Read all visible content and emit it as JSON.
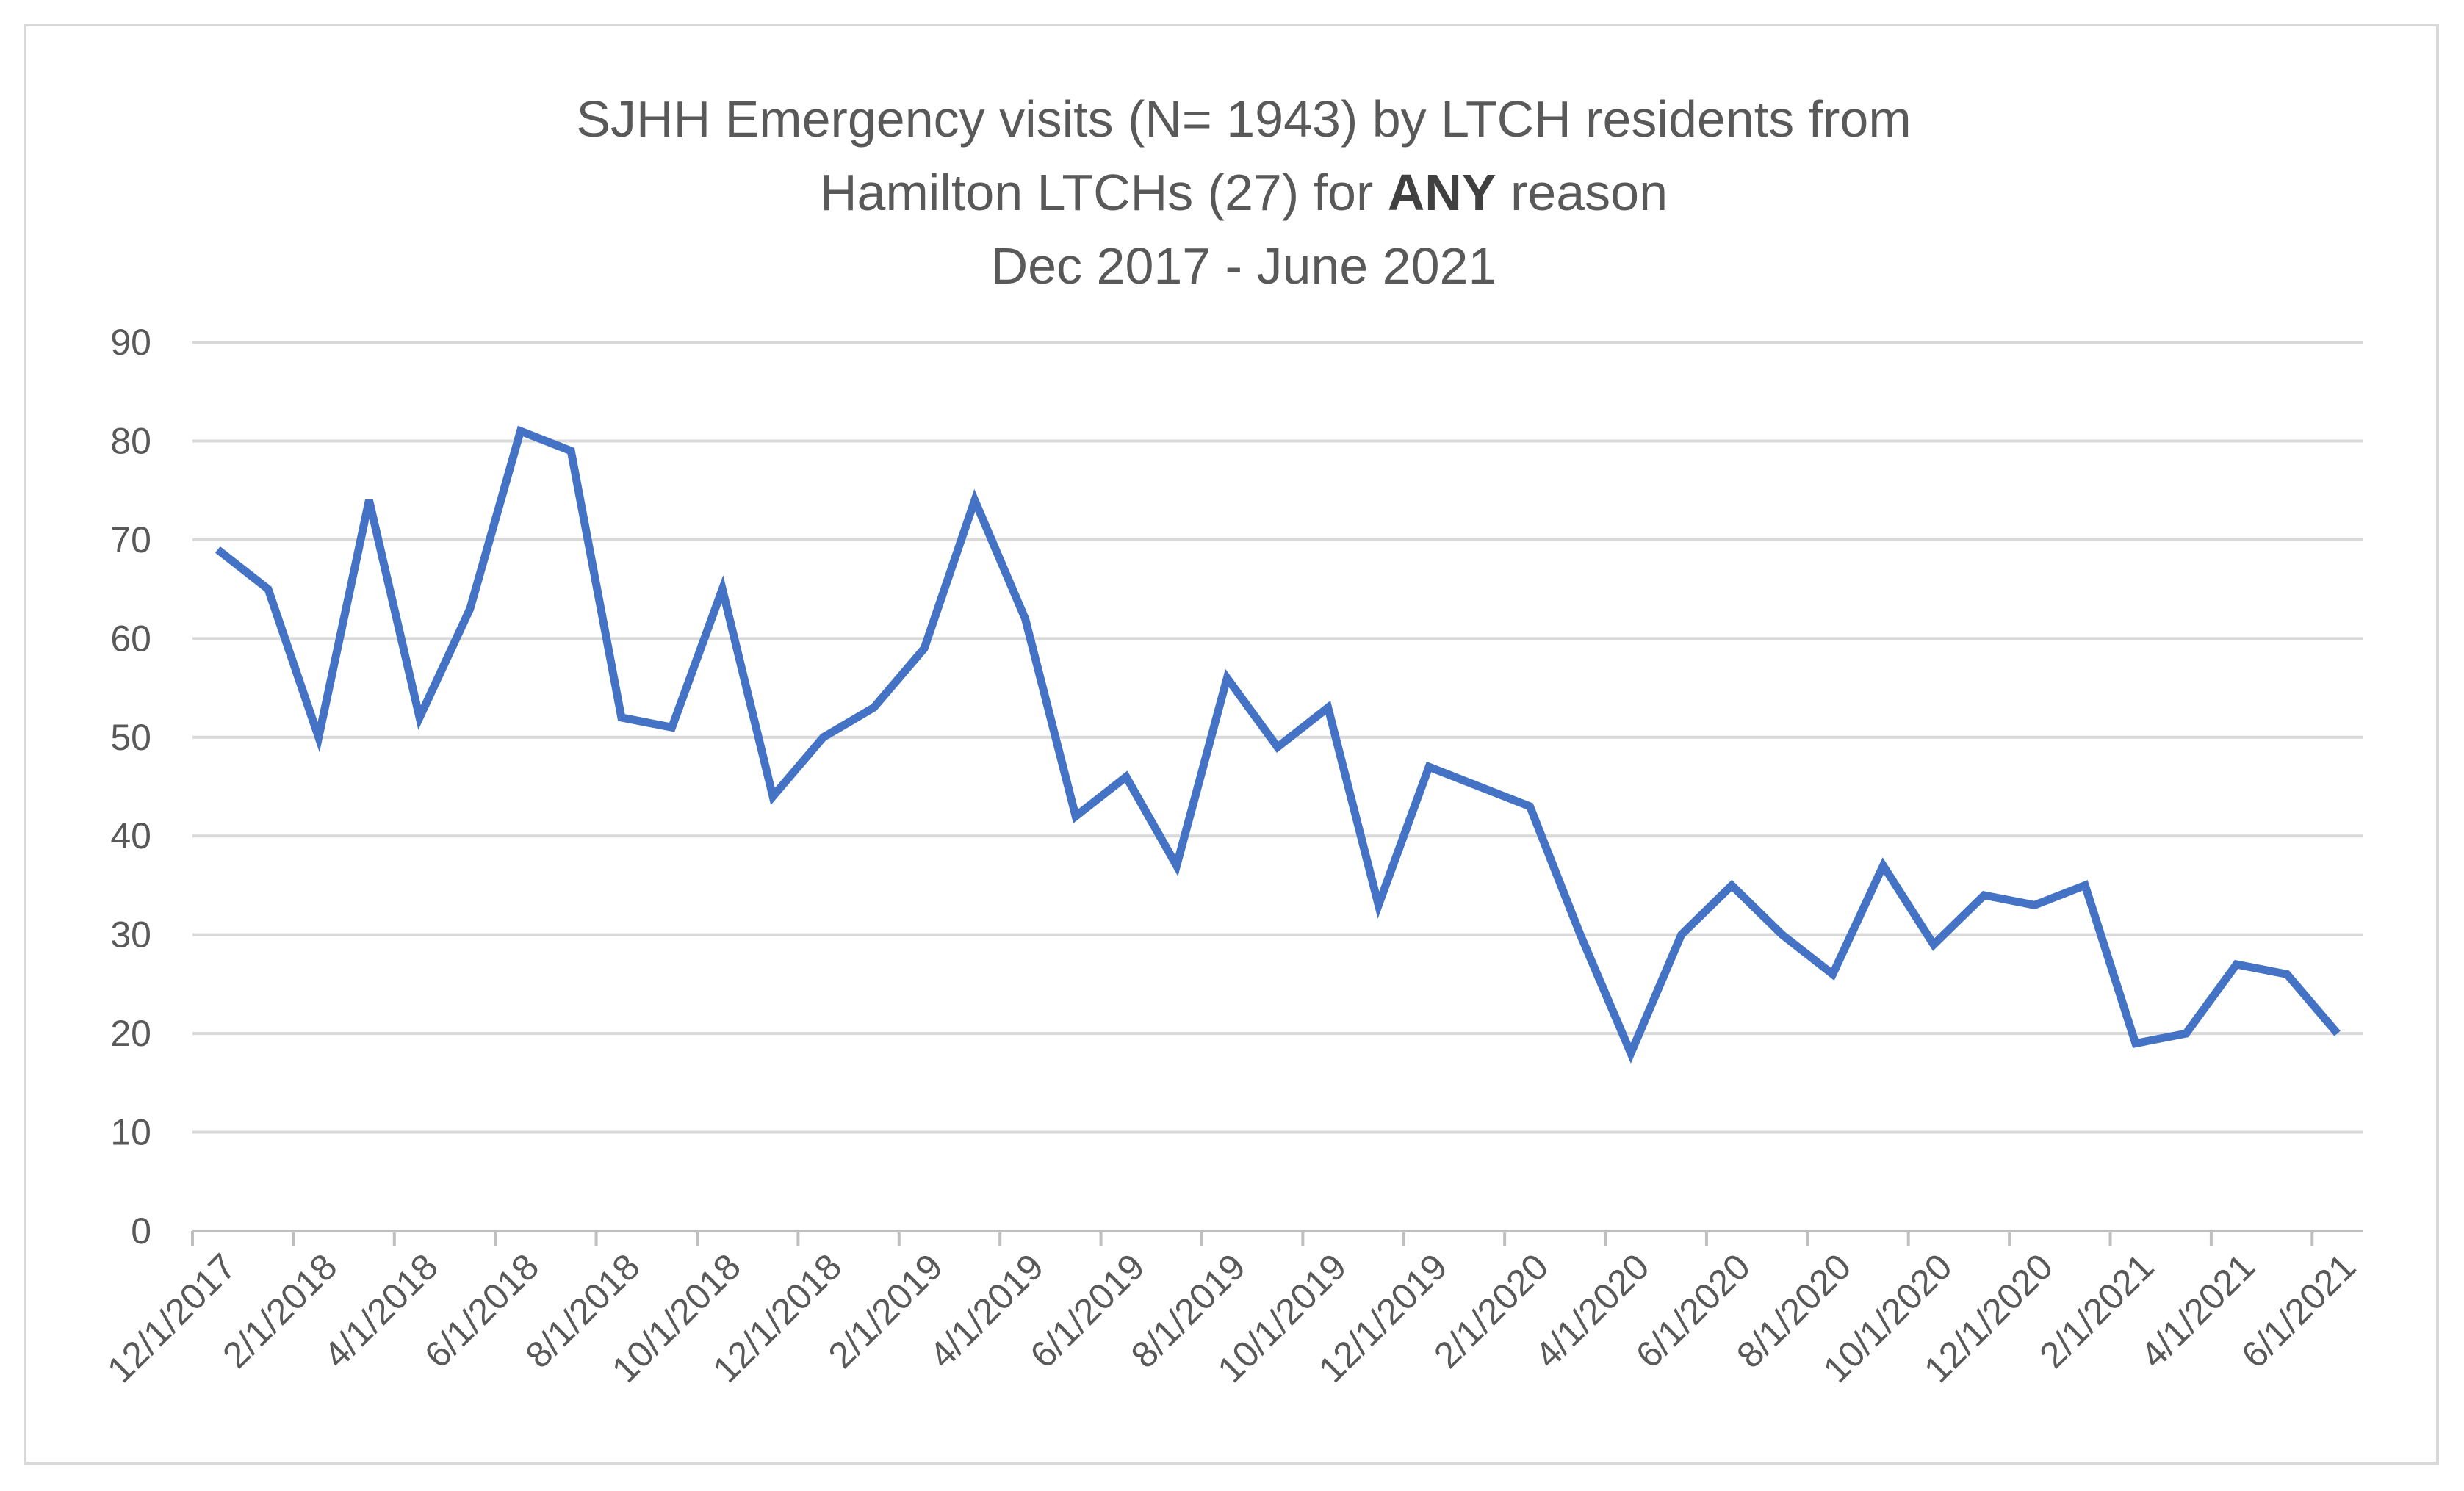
{
  "chart_data": {
    "type": "line",
    "title": {
      "line1": "SJHH Emergency visits (N= 1943) by LTCH residents from",
      "line2_pre": "Hamilton LTCHs (27) for ",
      "line2_bold": "ANY",
      "line2_post": " reason",
      "line3": "Dec 2017 -  June 2021"
    },
    "xlabel": "",
    "ylabel": "",
    "ylim": [
      0,
      90
    ],
    "yticks": [
      0,
      10,
      20,
      30,
      40,
      50,
      60,
      70,
      80,
      90
    ],
    "grid": true,
    "series_color": "#4472c4",
    "x_tick_labels": [
      "12/1/2017",
      "2/1/2018",
      "4/1/2018",
      "6/1/2018",
      "8/1/2018",
      "10/1/2018",
      "12/1/2018",
      "2/1/2019",
      "4/1/2019",
      "6/1/2019",
      "8/1/2019",
      "10/1/2019",
      "12/1/2019",
      "2/1/2020",
      "4/1/2020",
      "6/1/2020",
      "8/1/2020",
      "10/1/2020",
      "12/1/2020",
      "2/1/2021",
      "4/1/2021",
      "6/1/2021"
    ],
    "series": [
      {
        "name": "Emergency visits",
        "values": [
          69,
          65,
          50,
          74,
          52,
          63,
          81,
          79,
          52,
          51,
          65,
          44,
          50,
          53,
          59,
          74,
          62,
          42,
          46,
          37,
          56,
          49,
          53,
          33,
          47,
          45,
          43,
          30,
          18,
          30,
          35,
          30,
          26,
          37,
          29,
          34,
          33,
          35,
          19,
          20,
          27,
          26,
          20
        ]
      }
    ]
  }
}
